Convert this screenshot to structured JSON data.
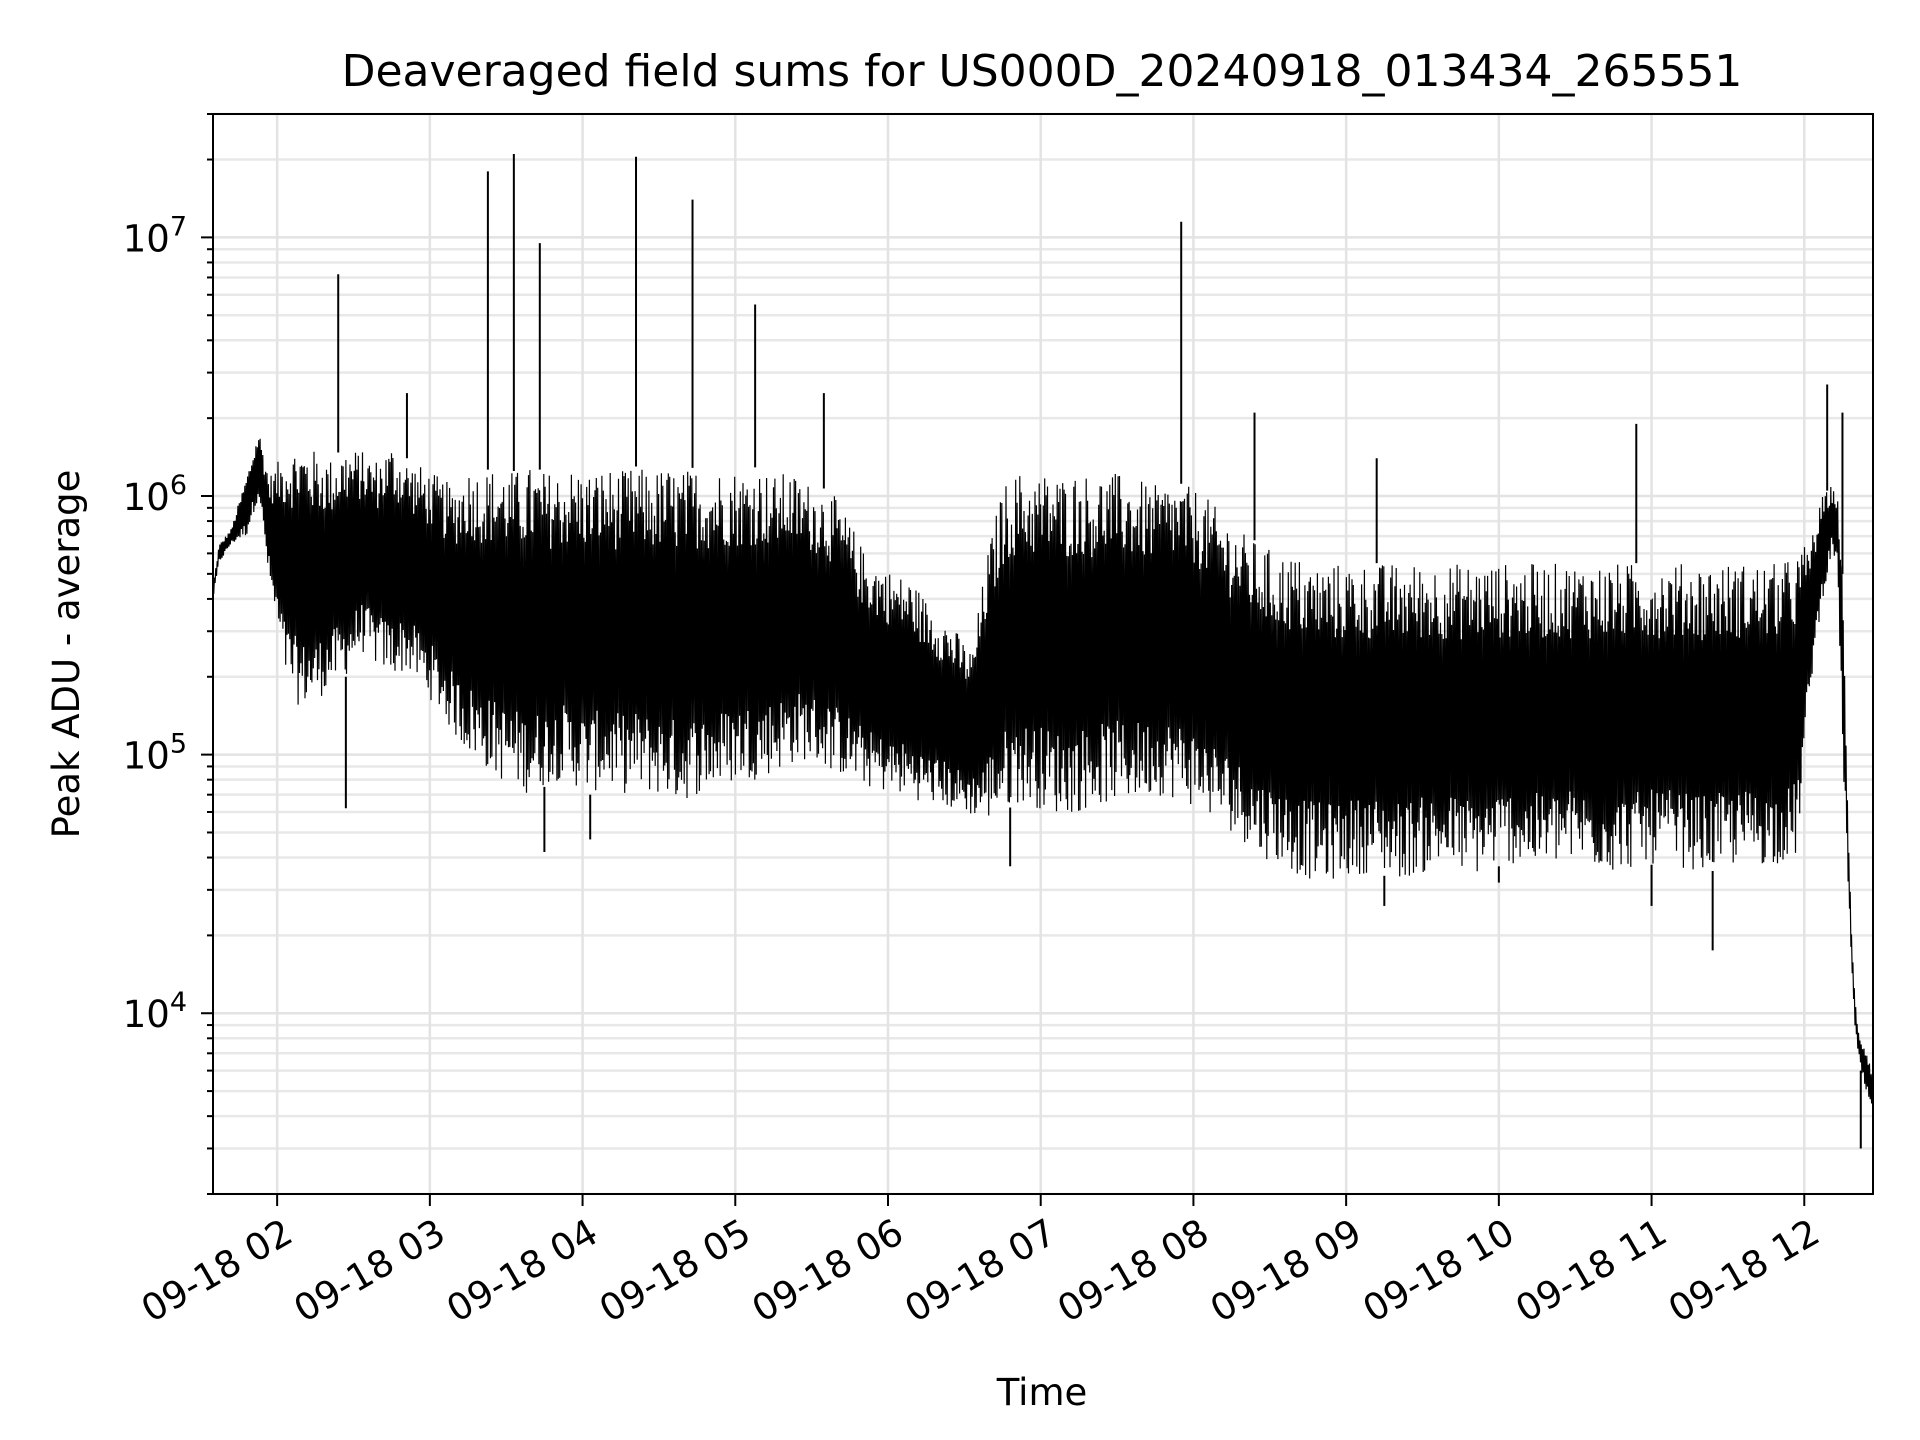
{
  "chart_data": {
    "type": "line",
    "title": "Deaveraged field sums for US000D_20240918_013434_265551",
    "xlabel": "Time",
    "ylabel": "Peak ADU - average",
    "x_ticks": [
      "09-18 02",
      "09-18 03",
      "09-18 04",
      "09-18 05",
      "09-18 06",
      "09-18 07",
      "09-18 08",
      "09-18 09",
      "09-18 10",
      "09-18 11",
      "09-18 12"
    ],
    "y_ticks": [
      {
        "base": "10",
        "exp": "4",
        "value": 10000
      },
      {
        "base": "10",
        "exp": "5",
        "value": 100000
      },
      {
        "base": "10",
        "exp": "6",
        "value": 1000000
      },
      {
        "base": "10",
        "exp": "7",
        "value": 10000000
      }
    ],
    "y_scale": "log",
    "x_range_hours": [
      1.58,
      12.45
    ],
    "y_range": [
      2000,
      30000000
    ],
    "grid": "major and minor",
    "line_color": "#000000",
    "series": [
      {
        "x_hours": [
          1.58,
          1.62,
          1.7,
          1.8,
          1.88,
          1.95,
          2.05,
          2.15,
          2.25,
          2.35,
          2.45,
          2.55,
          2.65,
          2.75,
          2.85,
          2.95,
          3.05,
          3.15,
          3.25,
          3.35,
          3.45,
          3.55,
          3.65,
          3.75,
          3.85,
          3.95,
          4.05,
          4.15,
          4.25,
          4.35,
          4.45,
          4.55,
          4.65,
          4.75,
          4.85,
          4.95,
          5.05,
          5.15,
          5.25,
          5.35,
          5.45,
          5.55,
          5.65,
          5.75,
          5.85,
          5.95,
          6.05,
          6.15,
          6.25,
          6.35,
          6.45,
          6.55,
          6.65,
          6.75,
          6.85,
          6.95,
          7.05,
          7.15,
          7.25,
          7.35,
          7.45,
          7.55,
          7.65,
          7.75,
          7.85,
          7.95,
          8.05,
          8.15,
          8.25,
          8.35,
          8.45,
          8.55,
          8.65,
          8.75,
          8.85,
          8.95,
          9.05,
          9.15,
          9.25,
          9.35,
          9.45,
          9.55,
          9.65,
          9.75,
          9.85,
          9.95,
          10.05,
          10.15,
          10.25,
          10.35,
          10.45,
          10.55,
          10.65,
          10.75,
          10.85,
          10.95,
          11.05,
          11.15,
          11.25,
          11.35,
          11.45,
          11.55,
          11.65,
          11.75,
          11.85,
          11.95,
          12.05,
          12.12,
          12.18,
          12.22,
          12.25,
          12.28,
          12.31,
          12.33,
          12.35,
          12.37,
          12.4,
          12.45
        ],
        "upper": [
          450000,
          650000,
          750000,
          1200000,
          1800000,
          1200000,
          1500000,
          1600000,
          1500000,
          1400000,
          1550000,
          1500000,
          1400000,
          1600000,
          1400000,
          1300000,
          1200000,
          1100000,
          1300000,
          1250000,
          1300000,
          1250000,
          1300000,
          1250000,
          1250000,
          1300000,
          1250000,
          1300000,
          1250000,
          1300000,
          1250000,
          1300000,
          1250000,
          1300000,
          1250000,
          1300000,
          1250000,
          1300000,
          1200000,
          1250000,
          1150000,
          1100000,
          1000000,
          800000,
          600000,
          550000,
          500000,
          480000,
          400000,
          350000,
          300000,
          250000,
          600000,
          1100000,
          1250000,
          1200000,
          1250000,
          1200000,
          1250000,
          1200000,
          1250000,
          1200000,
          1150000,
          1100000,
          1150000,
          1100000,
          1050000,
          900000,
          800000,
          700000,
          650000,
          600000,
          600000,
          550000,
          550000,
          550000,
          550000,
          550000,
          550000,
          550000,
          550000,
          550000,
          550000,
          550000,
          550000,
          550000,
          550000,
          550000,
          550000,
          550000,
          550000,
          550000,
          550000,
          550000,
          550000,
          550000,
          550000,
          550000,
          550000,
          550000,
          550000,
          550000,
          550000,
          550000,
          550000,
          600000,
          700000,
          1000000,
          1100000,
          1000000,
          500000,
          80000,
          20000,
          12000,
          9000,
          8000,
          7500,
          6000
        ],
        "lower": [
          400000,
          550000,
          650000,
          700000,
          1000000,
          450000,
          200000,
          150000,
          160000,
          180000,
          200000,
          250000,
          220000,
          200000,
          210000,
          180000,
          150000,
          120000,
          100000,
          90000,
          80000,
          75000,
          70000,
          75000,
          80000,
          75000,
          70000,
          75000,
          70000,
          72000,
          70000,
          68000,
          65000,
          70000,
          72000,
          75000,
          80000,
          80000,
          85000,
          90000,
          95000,
          90000,
          85000,
          80000,
          75000,
          72000,
          70000,
          68000,
          65000,
          63000,
          60000,
          58000,
          55000,
          60000,
          65000,
          63000,
          60000,
          58000,
          60000,
          62000,
          65000,
          65000,
          67000,
          70000,
          68000,
          65000,
          60000,
          55000,
          50000,
          45000,
          40000,
          38000,
          35000,
          33000,
          32000,
          33000,
          34000,
          35000,
          34000,
          33000,
          34000,
          35000,
          36000,
          35000,
          34000,
          36000,
          38000,
          37000,
          36000,
          37000,
          38000,
          37000,
          36000,
          35000,
          36000,
          37000,
          38000,
          37000,
          36000,
          35000,
          36000,
          37000,
          38000,
          37000,
          38000,
          40000,
          200000,
          400000,
          600000,
          500000,
          100000,
          40000,
          15000,
          9000,
          7000,
          6000,
          5000,
          4000
        ],
        "spikes": [
          {
            "x_hours": 2.4,
            "value": 7200000
          },
          {
            "x_hours": 2.85,
            "value": 2500000
          },
          {
            "x_hours": 3.38,
            "value": 18000000
          },
          {
            "x_hours": 3.55,
            "value": 21000000
          },
          {
            "x_hours": 3.72,
            "value": 9500000
          },
          {
            "x_hours": 4.35,
            "value": 20500000
          },
          {
            "x_hours": 4.72,
            "value": 14000000
          },
          {
            "x_hours": 5.13,
            "value": 5500000
          },
          {
            "x_hours": 5.58,
            "value": 2500000
          },
          {
            "x_hours": 7.92,
            "value": 11500000
          },
          {
            "x_hours": 8.4,
            "value": 2100000
          },
          {
            "x_hours": 9.2,
            "value": 1400000
          },
          {
            "x_hours": 10.9,
            "value": 1900000
          },
          {
            "x_hours": 12.15,
            "value": 2700000
          },
          {
            "x_hours": 12.25,
            "value": 2100000
          }
        ],
        "dips": [
          {
            "x_hours": 2.45,
            "value": 62000
          },
          {
            "x_hours": 3.75,
            "value": 42000
          },
          {
            "x_hours": 4.05,
            "value": 47000
          },
          {
            "x_hours": 6.8,
            "value": 37000
          },
          {
            "x_hours": 9.25,
            "value": 26000
          },
          {
            "x_hours": 10.0,
            "value": 32000
          },
          {
            "x_hours": 11.0,
            "value": 26000
          },
          {
            "x_hours": 11.4,
            "value": 17500
          },
          {
            "x_hours": 12.37,
            "value": 3000
          }
        ]
      }
    ]
  }
}
